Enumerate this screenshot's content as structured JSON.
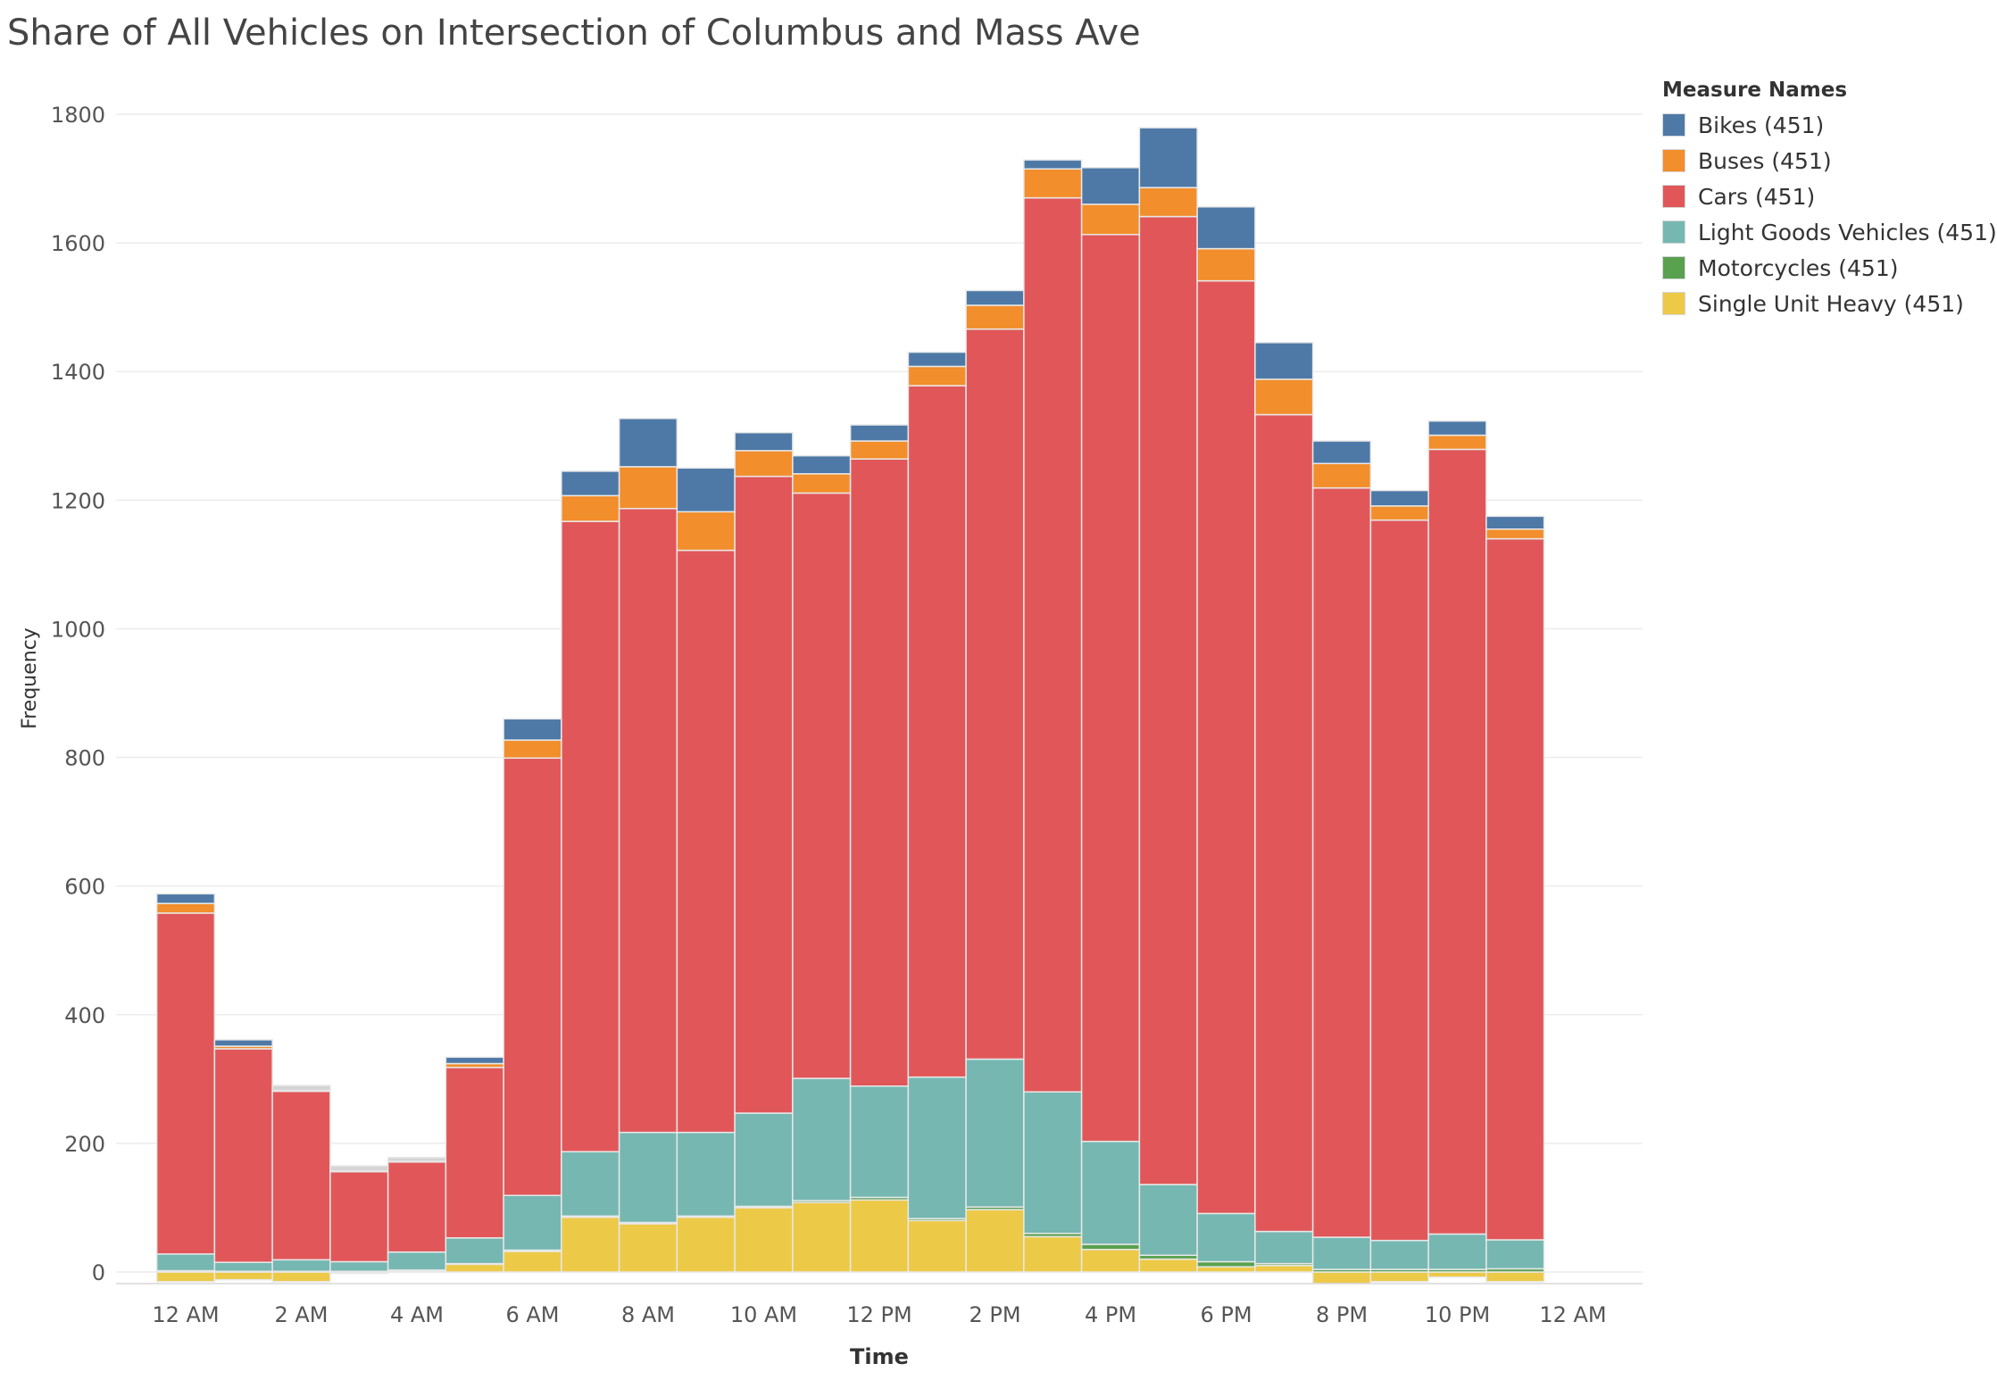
{
  "chart_data": {
    "type": "bar",
    "stacked": true,
    "title": "Share of All Vehicles on Intersection of Columbus and Mass Ave",
    "xlabel": "Time",
    "ylabel": "Frequency",
    "ylim": [
      -20,
      1840
    ],
    "yticks": [
      0,
      200,
      400,
      600,
      800,
      1000,
      1200,
      1400,
      1600,
      1800
    ],
    "xlim": [
      -1,
      25
    ],
    "xticks": [
      0,
      2,
      4,
      6,
      8,
      10,
      12,
      14,
      16,
      18,
      20,
      22,
      24
    ],
    "xtick_labels": [
      "12 AM",
      "2 AM",
      "4 AM",
      "6 AM",
      "8 AM",
      "10 AM",
      "12 PM",
      "2 PM",
      "4 PM",
      "6 PM",
      "8 PM",
      "10 PM",
      "12 AM"
    ],
    "hours": [
      0,
      1,
      2,
      3,
      4,
      5,
      6,
      7,
      8,
      9,
      10,
      11,
      12,
      13,
      14,
      15,
      16,
      17,
      18,
      19,
      20,
      21,
      22,
      23
    ],
    "grid": true,
    "legend_title": "Measure Names",
    "legend_position": "top-right",
    "series": [
      {
        "name": "Single Unit Heavy (451)",
        "color": "#edc948",
        "values": [
          -15,
          -12,
          -15,
          -2,
          2,
          12,
          32,
          85,
          75,
          85,
          100,
          108,
          112,
          80,
          97,
          55,
          35,
          20,
          8,
          10,
          -18,
          -15,
          -8,
          -15
        ]
      },
      {
        "name": "Motorcycles (451)",
        "color": "#59a14f",
        "values": [
          2,
          1,
          1,
          1,
          1,
          1,
          2,
          2,
          2,
          2,
          2,
          3,
          4,
          3,
          4,
          5,
          8,
          6,
          8,
          3,
          4,
          4,
          4,
          5
        ]
      },
      {
        "name": "Light Goods Vehicles (451)",
        "color": "#76b7b2",
        "values": [
          26,
          14,
          18,
          15,
          28,
          40,
          85,
          100,
          140,
          130,
          145,
          190,
          173,
          220,
          230,
          220,
          160,
          110,
          75,
          50,
          50,
          45,
          55,
          45
        ]
      },
      {
        "name": "Cars (451)",
        "color": "#e15759",
        "values": [
          530,
          332,
          262,
          140,
          140,
          265,
          680,
          980,
          970,
          905,
          990,
          910,
          975,
          1075,
          1135,
          1390,
          1410,
          1505,
          1450,
          1270,
          1165,
          1120,
          1220,
          1090
        ]
      },
      {
        "name": "Buses (451)",
        "color": "#f28e2b",
        "values": [
          15,
          4,
          1,
          1,
          1,
          6,
          28,
          40,
          65,
          60,
          40,
          30,
          28,
          30,
          37,
          45,
          47,
          45,
          50,
          55,
          38,
          22,
          22,
          15
        ]
      },
      {
        "name": "Bikes (451)",
        "color": "#4e79a7",
        "values": [
          15,
          10,
          0,
          0,
          0,
          10,
          33,
          38,
          75,
          68,
          28,
          28,
          25,
          22,
          23,
          14,
          57,
          93,
          65,
          57,
          35,
          24,
          22,
          20
        ]
      },
      {
        "name": "",
        "color": "#d4d4d4",
        "values": [
          0,
          0,
          8,
          8,
          6,
          0,
          0,
          0,
          0,
          0,
          0,
          0,
          0,
          0,
          0,
          0,
          0,
          0,
          0,
          0,
          0,
          0,
          0,
          0
        ]
      }
    ],
    "legend_order": [
      5,
      4,
      3,
      2,
      1,
      0
    ]
  }
}
